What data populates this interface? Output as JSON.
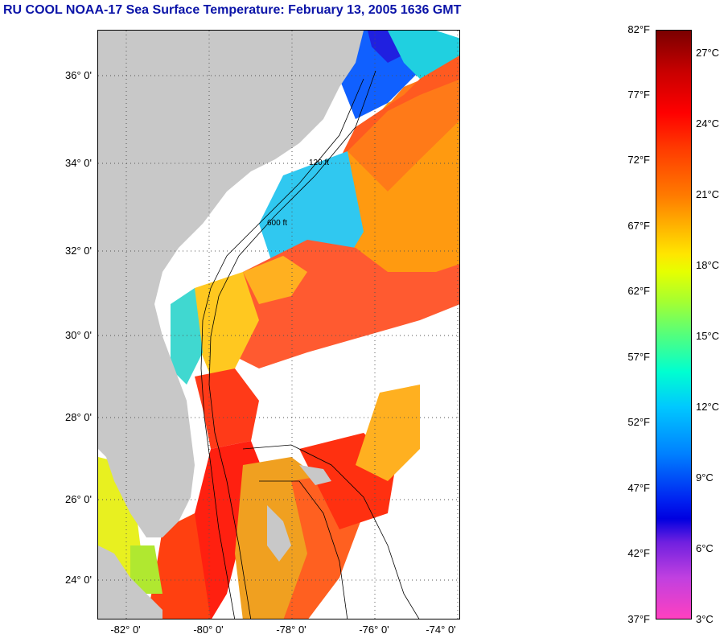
{
  "title": "RU COOL  NOAA-17  Sea Surface Temperature:  February 13, 2005 1636 GMT",
  "map": {
    "lat_labels": [
      "36° 0'",
      "34° 0'",
      "32° 0'",
      "30° 0'",
      "28° 0'",
      "26° 0'",
      "24° 0'"
    ],
    "lon_labels": [
      "-82° 0'",
      "-80° 0'",
      "-78° 0'",
      "-76° 0'",
      "-74° 0'"
    ],
    "contour_labels": [
      "120 ft",
      "600 ft"
    ],
    "colors": {
      "land": "#c8c8c8",
      "cloud": "#ffffff",
      "gulf_stream": "#ff3a10",
      "shelf": "#20c8e8"
    }
  },
  "colorbar": {
    "fahrenheit": [
      "82°F",
      "77°F",
      "72°F",
      "67°F",
      "62°F",
      "57°F",
      "52°F",
      "47°F",
      "42°F",
      "37°F"
    ],
    "celsius": [
      "27°C",
      "24°C",
      "21°C",
      "18°C",
      "15°C",
      "12°C",
      "9°C",
      "6°C",
      "3°C"
    ]
  }
}
